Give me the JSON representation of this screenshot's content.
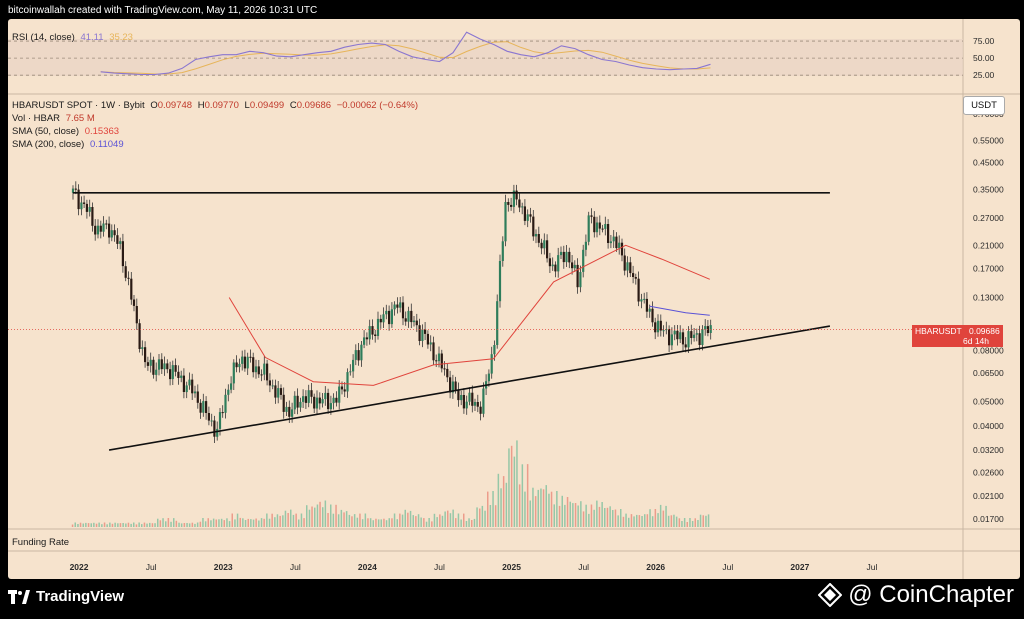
{
  "attribution": "bitcoinwallah created with TradingView.com, May 11, 2026 10:31 UTC",
  "rsi": {
    "label": "RSI (14, close)",
    "value": "41.11",
    "ma_value": "35.23",
    "levels": [
      "75.00",
      "50.00",
      "25.00"
    ]
  },
  "legend": {
    "symbol_line": "HBARUSDT SPOT · 1W · Bybit",
    "o_label": "O",
    "o": "0.09748",
    "h_label": "H",
    "h": "0.09770",
    "l_label": "L",
    "l": "0.09499",
    "c_label": "C",
    "c": "0.09686",
    "change": "−0.00062 (−0.64%)",
    "vol_label": "Vol · HBAR",
    "vol": "7.65 M",
    "sma50_label": "SMA (50, close)",
    "sma50": "0.15363",
    "sma200_label": "SMA (200, close)",
    "sma200": "0.11049"
  },
  "unit": "USDT",
  "price_tag": {
    "symbol": "HBARUSDT",
    "price": "0.09686",
    "countdown": "6d 14h"
  },
  "funding_label": "Funding Rate",
  "brand_left": "TradingView",
  "brand_right": "@ CoinChapter",
  "colors": {
    "bull": "#22a57a",
    "bear": "#e0443c",
    "sma50": "#e0443c",
    "sma200": "#5a52d6",
    "rsi": "#8a76d0",
    "rsi_ma": "#e7b55a",
    "background": "#f6e3cd"
  },
  "chart_data": {
    "type": "candlestick",
    "price_axis": {
      "scale": "log",
      "ticks": [
        "0.70000",
        "0.55000",
        "0.45000",
        "0.35000",
        "0.27000",
        "0.21000",
        "0.17000",
        "0.13000",
        "0.08000",
        "0.06500",
        "0.05000",
        "0.04000",
        "0.03200",
        "0.02600",
        "0.02100",
        "0.01700"
      ]
    },
    "time_axis": {
      "ticks": [
        "2022",
        "Jul",
        "2023",
        "Jul",
        "2024",
        "Jul",
        "2025",
        "Jul",
        "2026",
        "Jul",
        "2027",
        "Jul"
      ]
    },
    "close_path": [
      [
        "2021-12",
        0.34
      ],
      [
        "2022-01",
        0.3
      ],
      [
        "2022-02",
        0.24
      ],
      [
        "2022-03",
        0.25
      ],
      [
        "2022-04",
        0.2
      ],
      [
        "2022-05",
        0.12
      ],
      [
        "2022-06",
        0.07
      ],
      [
        "2022-08",
        0.068
      ],
      [
        "2022-10",
        0.055
      ],
      [
        "2022-11",
        0.045
      ],
      [
        "2022-12",
        0.038
      ],
      [
        "2023-01",
        0.06
      ],
      [
        "2023-02",
        0.075
      ],
      [
        "2023-04",
        0.064
      ],
      [
        "2023-06",
        0.045
      ],
      [
        "2023-07",
        0.052
      ],
      [
        "2023-09",
        0.05
      ],
      [
        "2023-10",
        0.051
      ],
      [
        "2023-12",
        0.085
      ],
      [
        "2024-02",
        0.11
      ],
      [
        "2024-03",
        0.12
      ],
      [
        "2024-05",
        0.095
      ],
      [
        "2024-07",
        0.065
      ],
      [
        "2024-08",
        0.052
      ],
      [
        "2024-10",
        0.048
      ],
      [
        "2024-11",
        0.082
      ],
      [
        "2024-12",
        0.31
      ],
      [
        "2025-01",
        0.32
      ],
      [
        "2025-03",
        0.21
      ],
      [
        "2025-04",
        0.17
      ],
      [
        "2025-05",
        0.2
      ],
      [
        "2025-06",
        0.15
      ],
      [
        "2025-07",
        0.27
      ],
      [
        "2025-09",
        0.22
      ],
      [
        "2025-10",
        0.18
      ],
      [
        "2025-11",
        0.14
      ],
      [
        "2025-12",
        0.11
      ],
      [
        "2026-01",
        0.095
      ],
      [
        "2026-03",
        0.088
      ],
      [
        "2026-05",
        0.0969
      ]
    ],
    "sma50_path": [
      [
        "2023-01",
        0.13
      ],
      [
        "2023-04",
        0.075
      ],
      [
        "2023-08",
        0.06
      ],
      [
        "2024-01",
        0.058
      ],
      [
        "2024-06",
        0.07
      ],
      [
        "2024-11",
        0.074
      ],
      [
        "2025-04",
        0.15
      ],
      [
        "2025-10",
        0.21
      ],
      [
        "2026-01",
        0.185
      ],
      [
        "2026-05",
        0.15363
      ]
    ],
    "sma200_path": [
      [
        "2025-12",
        0.12
      ],
      [
        "2026-03",
        0.113
      ],
      [
        "2026-05",
        0.11049
      ]
    ],
    "resistance_line": {
      "from": [
        "2021-12",
        0.34
      ],
      "to": [
        "2027-03",
        0.34
      ]
    },
    "support_line": {
      "from": [
        "2022-03",
        0.032
      ],
      "to": [
        "2027-03",
        0.1
      ]
    },
    "volume_profile": [
      1,
      1,
      1,
      1,
      1,
      1,
      1,
      1,
      2,
      2,
      1,
      1,
      2,
      2,
      2,
      3,
      2,
      2,
      3,
      3,
      4,
      3,
      5,
      6,
      5,
      4,
      3,
      3,
      2,
      2,
      3,
      4,
      3,
      2,
      3,
      4,
      3,
      2,
      5,
      8,
      12,
      20,
      14,
      9,
      10,
      8,
      7,
      6,
      5,
      6,
      5,
      4,
      3,
      3,
      4,
      5,
      3,
      2,
      2,
      3
    ],
    "rsi_path": [
      30,
      28,
      27,
      26,
      26,
      28,
      35,
      48,
      52,
      55,
      55,
      60,
      58,
      53,
      52,
      55,
      58,
      60,
      66,
      70,
      72,
      70,
      60,
      52,
      48,
      45,
      58,
      88,
      78,
      70,
      60,
      55,
      52,
      58,
      68,
      64,
      55,
      48,
      45,
      40,
      36,
      34,
      33,
      34,
      35,
      41
    ]
  }
}
